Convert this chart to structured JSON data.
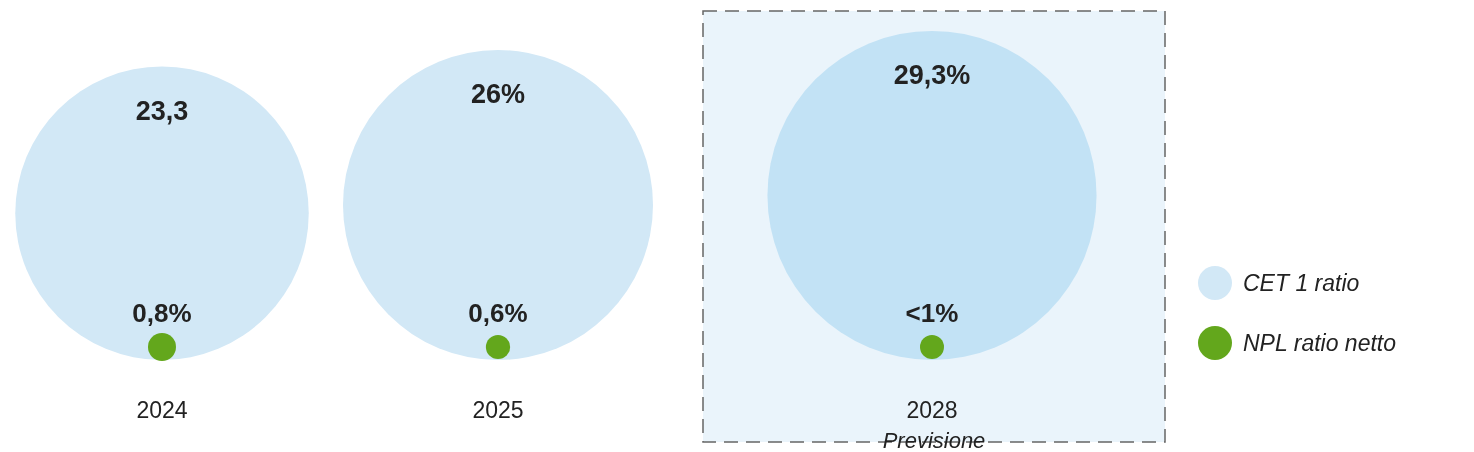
{
  "chart_data": {
    "type": "other",
    "categories": [
      "2024",
      "2025",
      "2028"
    ],
    "series": [
      {
        "name": "CET 1 ratio",
        "colors": [
          "#d2e8f6",
          "#d2e8f6",
          "#c2e2f5"
        ],
        "values": [
          23.3,
          26,
          29.3
        ],
        "value_labels": [
          "23,3",
          "26%",
          "29,3%"
        ]
      },
      {
        "name": "NPL ratio netto",
        "color": "#63a71c",
        "values": [
          0.8,
          0.6,
          null
        ],
        "value_labels": [
          "0,8%",
          "0,6%",
          "<1%"
        ]
      }
    ],
    "annotations": [
      "Previsione"
    ],
    "legend": "right"
  }
}
